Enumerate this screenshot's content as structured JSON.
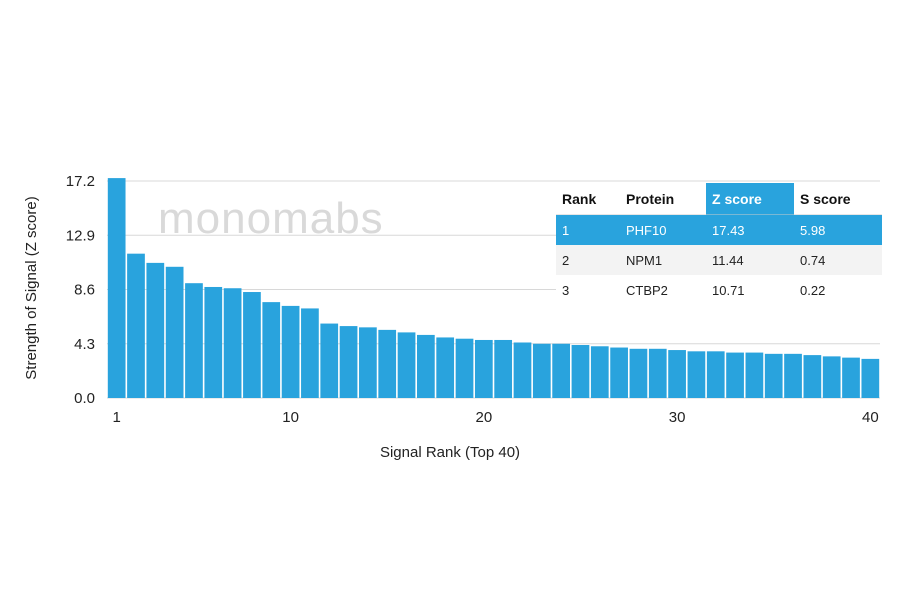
{
  "chart_data": {
    "type": "bar",
    "xlabel": "Signal Rank (Top 40)",
    "ylabel": "Strength of Signal (Z score)",
    "ylim": [
      0,
      17.2
    ],
    "yticks": [
      "17.2",
      "12.9",
      "8.6",
      "4.3",
      "0.0"
    ],
    "xticks": [
      "1",
      "10",
      "20",
      "30",
      "40"
    ],
    "x": [
      1,
      2,
      3,
      4,
      5,
      6,
      7,
      8,
      9,
      10,
      11,
      12,
      13,
      14,
      15,
      16,
      17,
      18,
      19,
      20,
      21,
      22,
      23,
      24,
      25,
      26,
      27,
      28,
      29,
      30,
      31,
      32,
      33,
      34,
      35,
      36,
      37,
      38,
      39,
      40
    ],
    "values": [
      17.43,
      11.44,
      10.71,
      10.4,
      9.1,
      8.8,
      8.7,
      8.4,
      7.6,
      7.3,
      7.1,
      5.9,
      5.7,
      5.6,
      5.4,
      5.2,
      5.0,
      4.8,
      4.7,
      4.6,
      4.6,
      4.4,
      4.3,
      4.3,
      4.2,
      4.1,
      4.0,
      3.9,
      3.9,
      3.8,
      3.7,
      3.7,
      3.6,
      3.6,
      3.5,
      3.5,
      3.4,
      3.3,
      3.2,
      3.1
    ],
    "bar_color": "#29a3dd",
    "grid": true
  },
  "watermark": "monomabs",
  "table": {
    "headers": [
      "Rank",
      "Protein",
      "Z score",
      "S score"
    ],
    "rows": [
      [
        "1",
        "PHF10",
        "17.43",
        "5.98"
      ],
      [
        "2",
        "NPM1",
        "11.44",
        "0.74"
      ],
      [
        "3",
        "CTBP2",
        "10.71",
        "0.22"
      ]
    ],
    "highlight_color": "#29a3dd",
    "stripe_color": "#f3f3f3"
  }
}
